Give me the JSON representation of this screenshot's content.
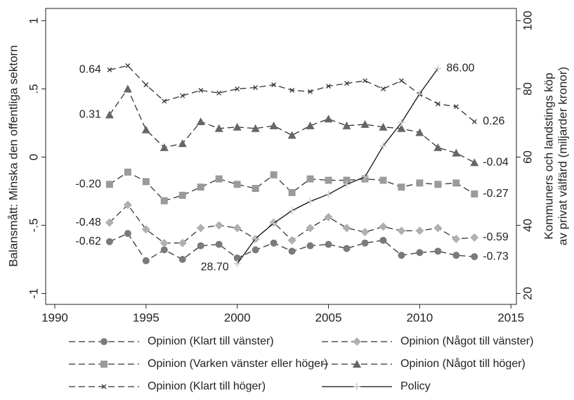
{
  "chart_data": {
    "type": "line",
    "ylabel": "Balansmått: Minska den offentliga sektorn",
    "y2label": [
      "Kommuners och landstings köp",
      "av privat välfärd (miljarder kronor)"
    ],
    "x": [
      1993,
      1994,
      1995,
      1996,
      1997,
      1998,
      1999,
      2000,
      2001,
      2002,
      2003,
      2004,
      2005,
      2006,
      2007,
      2008,
      2009,
      2010,
      2011,
      2012,
      2013
    ],
    "xlim": [
      1989.5,
      2015.3
    ],
    "xticks": [
      1990,
      1995,
      2000,
      2005,
      2010,
      2015
    ],
    "ylim": [
      -1.08,
      1.09
    ],
    "yticks": [
      -1,
      {
        "value": -0.5,
        "label": "-.5"
      },
      0,
      {
        "value": 0.5,
        "label": ".5"
      },
      1
    ],
    "y2lim": [
      16.8,
      103.6
    ],
    "y2ticks": [
      20,
      40,
      60,
      80,
      100
    ],
    "series": [
      {
        "name": "Opinion (Klart till vänster)",
        "color": "#7a7a7a",
        "marker": "circle",
        "dash": true,
        "values": [
          -0.62,
          -0.56,
          -0.76,
          -0.68,
          -0.75,
          -0.65,
          -0.64,
          -0.74,
          -0.68,
          -0.63,
          -0.69,
          -0.65,
          -0.64,
          -0.67,
          -0.63,
          -0.61,
          -0.72,
          -0.7,
          -0.69,
          -0.72,
          -0.73
        ],
        "value_labels": [
          "-0.62",
          null,
          null,
          null,
          null,
          null,
          null,
          null,
          null,
          null,
          null,
          null,
          null,
          null,
          null,
          null,
          null,
          null,
          null,
          null,
          "-0.73"
        ]
      },
      {
        "name": "Opinion (Något till vänster)",
        "color": "#b0b0b0",
        "marker": "diamond",
        "dash": true,
        "values": [
          -0.48,
          -0.35,
          -0.53,
          -0.63,
          -0.63,
          -0.52,
          -0.5,
          -0.52,
          -0.6,
          -0.48,
          -0.61,
          -0.52,
          -0.44,
          -0.52,
          -0.55,
          -0.51,
          -0.54,
          -0.54,
          -0.52,
          -0.6,
          -0.59
        ],
        "value_labels": [
          "-0.48",
          null,
          null,
          null,
          null,
          null,
          null,
          null,
          null,
          null,
          null,
          null,
          null,
          null,
          null,
          null,
          null,
          null,
          null,
          null,
          "-0.59"
        ]
      },
      {
        "name": "Opinion (Varken vänster eller höger)",
        "color": "#9a9a9a",
        "marker": "square",
        "dash": true,
        "values": [
          -0.2,
          -0.11,
          -0.18,
          -0.32,
          -0.28,
          -0.22,
          -0.16,
          -0.2,
          -0.23,
          -0.13,
          -0.26,
          -0.16,
          -0.17,
          -0.17,
          -0.16,
          -0.17,
          -0.22,
          -0.19,
          -0.2,
          -0.19,
          -0.27
        ],
        "value_labels": [
          "-0.20",
          null,
          null,
          null,
          null,
          null,
          null,
          null,
          null,
          null,
          null,
          null,
          null,
          null,
          null,
          null,
          null,
          null,
          null,
          null,
          "-0.27"
        ]
      },
      {
        "name": "Opinion (Något till höger)",
        "color": "#666666",
        "marker": "triangle",
        "dash": true,
        "values": [
          0.31,
          0.5,
          0.2,
          0.07,
          0.1,
          0.26,
          0.21,
          0.22,
          0.21,
          0.23,
          0.16,
          0.23,
          0.28,
          0.23,
          0.24,
          0.22,
          0.21,
          0.18,
          0.07,
          0.03,
          -0.04
        ],
        "value_labels": [
          "0.31",
          null,
          null,
          null,
          null,
          null,
          null,
          null,
          null,
          null,
          null,
          null,
          null,
          null,
          null,
          null,
          null,
          null,
          null,
          null,
          "-0.04"
        ]
      },
      {
        "name": "Opinion (Klart till höger)",
        "color": "#333333",
        "marker": "x",
        "dash": true,
        "values": [
          0.64,
          0.67,
          0.53,
          0.41,
          0.45,
          0.49,
          0.47,
          0.5,
          0.51,
          0.53,
          0.49,
          0.48,
          0.52,
          0.54,
          0.56,
          0.5,
          0.56,
          0.46,
          0.39,
          0.37,
          0.26
        ],
        "value_labels": [
          "0.64",
          null,
          null,
          null,
          null,
          null,
          null,
          null,
          null,
          null,
          null,
          null,
          null,
          null,
          null,
          null,
          null,
          null,
          null,
          null,
          "0.26"
        ]
      },
      {
        "name": "Policy",
        "color": "#111111",
        "marker": "plus",
        "marker_color": "#c8c8c8",
        "dash": false,
        "axis": "y2",
        "values": [
          null,
          null,
          null,
          null,
          null,
          null,
          null,
          28.7,
          36.1,
          40.6,
          44.3,
          47.0,
          49.1,
          52.0,
          54.2,
          63.3,
          70.1,
          78.6,
          86.0,
          null,
          null
        ],
        "value_labels": [
          null,
          null,
          null,
          null,
          null,
          null,
          null,
          "28.70",
          null,
          null,
          null,
          null,
          null,
          null,
          null,
          null,
          null,
          null,
          "86.00",
          null,
          null
        ]
      }
    ]
  }
}
